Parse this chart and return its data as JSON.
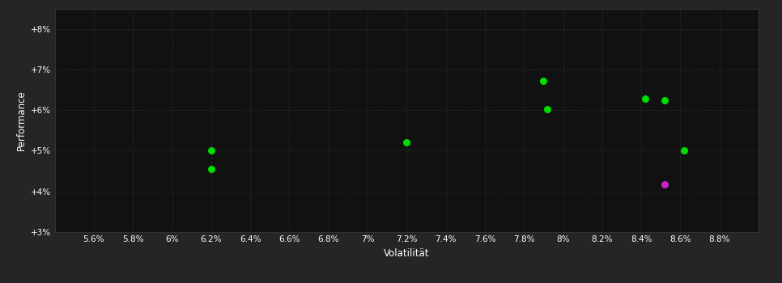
{
  "background_color": "#252525",
  "plot_bg_color": "#111111",
  "grid_color": "#333333",
  "text_color": "#ffffff",
  "xlabel": "Volatilität",
  "ylabel": "Performance",
  "xlim": [
    0.054,
    0.09
  ],
  "ylim": [
    0.03,
    0.085
  ],
  "xticks": [
    0.056,
    0.058,
    0.06,
    0.062,
    0.064,
    0.066,
    0.068,
    0.07,
    0.072,
    0.074,
    0.076,
    0.078,
    0.08,
    0.082,
    0.084,
    0.086,
    0.088
  ],
  "yticks": [
    0.03,
    0.04,
    0.05,
    0.06,
    0.07,
    0.08
  ],
  "xtick_labels": [
    "5.6%",
    "5.8%",
    "6%",
    "6.2%",
    "6.4%",
    "6.6%",
    "6.8%",
    "7%",
    "7.2%",
    "7.4%",
    "7.6%",
    "7.8%",
    "8%",
    "8.2%",
    "8.4%",
    "8.6%",
    "8.8%"
  ],
  "ytick_labels": [
    "+3%",
    "+4%",
    "+5%",
    "+6%",
    "+7%",
    "+8%"
  ],
  "green_points_xy": [
    [
      0.062,
      0.05
    ],
    [
      0.062,
      0.0455
    ],
    [
      0.072,
      0.052
    ],
    [
      0.079,
      0.0672
    ],
    [
      0.0792,
      0.0602
    ],
    [
      0.0842,
      0.0628
    ],
    [
      0.0852,
      0.0625
    ],
    [
      0.0862,
      0.05
    ]
  ],
  "magenta_points_xy": [
    [
      0.0852,
      0.0418
    ]
  ],
  "point_color_green": "#00dd00",
  "point_color_magenta": "#cc22cc",
  "point_size": 30,
  "tick_fontsize": 7.5,
  "label_fontsize": 8.5
}
